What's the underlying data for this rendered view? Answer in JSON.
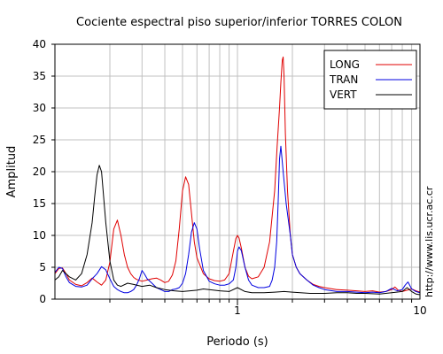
{
  "chart_data": {
    "type": "line",
    "title": "Cociente espectral piso superior/inferior  TORRES COLON",
    "xlabel": "Periodo (s)",
    "ylabel": "Amplitud",
    "xscale": "log",
    "xlim": [
      0.1,
      10
    ],
    "ylim": [
      0,
      40
    ],
    "x_ticks": [
      "1",
      "10"
    ],
    "y_ticks": [
      "0",
      "5",
      "10",
      "15",
      "20",
      "25",
      "30",
      "35",
      "40"
    ],
    "grid": true,
    "legend_position": "top-right",
    "credit": "http://www.lis.ucr.ac.cr",
    "series": [
      {
        "name": "LONG",
        "color": "#e00000",
        "x": [
          0.1,
          0.105,
          0.11,
          0.115,
          0.12,
          0.13,
          0.14,
          0.15,
          0.16,
          0.17,
          0.18,
          0.19,
          0.2,
          0.21,
          0.22,
          0.23,
          0.24,
          0.25,
          0.26,
          0.27,
          0.28,
          0.3,
          0.32,
          0.34,
          0.36,
          0.38,
          0.4,
          0.42,
          0.44,
          0.46,
          0.48,
          0.5,
          0.52,
          0.54,
          0.56,
          0.58,
          0.6,
          0.65,
          0.7,
          0.75,
          0.8,
          0.85,
          0.9,
          0.95,
          0.98,
          1.0,
          1.02,
          1.05,
          1.1,
          1.15,
          1.2,
          1.3,
          1.4,
          1.5,
          1.6,
          1.65,
          1.7,
          1.73,
          1.76,
          1.78,
          1.8,
          1.83,
          1.88,
          1.95,
          2.0,
          2.1,
          2.2,
          2.4,
          2.6,
          2.8,
          3.0,
          3.5,
          4.0,
          4.5,
          5.0,
          5.5,
          6.0,
          6.5,
          7.0,
          7.3,
          7.6,
          8.0,
          8.5,
          9.0,
          9.5,
          10.0
        ],
        "y": [
          4.0,
          4.8,
          4.9,
          4.0,
          3.0,
          2.3,
          2.1,
          2.6,
          3.3,
          2.7,
          2.2,
          3.0,
          5.8,
          11.0,
          12.4,
          10.0,
          7.0,
          5.0,
          4.0,
          3.4,
          3.1,
          2.8,
          3.0,
          3.2,
          3.3,
          3.0,
          2.6,
          2.8,
          3.8,
          6.0,
          11.0,
          17.0,
          19.2,
          18.0,
          13.5,
          9.0,
          6.5,
          4.0,
          3.2,
          2.9,
          2.8,
          3.0,
          4.0,
          7.5,
          9.5,
          10.0,
          9.6,
          8.0,
          5.0,
          3.6,
          3.2,
          3.5,
          5.0,
          9.0,
          17.0,
          24.0,
          30.0,
          34.0,
          37.5,
          38.0,
          35.0,
          26.0,
          17.0,
          10.0,
          7.0,
          5.0,
          4.0,
          3.0,
          2.3,
          2.0,
          1.8,
          1.5,
          1.4,
          1.3,
          1.2,
          1.3,
          1.1,
          1.2,
          1.5,
          1.9,
          1.4,
          1.2,
          1.4,
          1.6,
          1.3,
          1.1
        ]
      },
      {
        "name": "TRAN",
        "color": "#0000e0",
        "x": [
          0.1,
          0.105,
          0.11,
          0.115,
          0.12,
          0.13,
          0.14,
          0.15,
          0.16,
          0.17,
          0.18,
          0.19,
          0.2,
          0.21,
          0.22,
          0.23,
          0.24,
          0.25,
          0.26,
          0.27,
          0.28,
          0.29,
          0.3,
          0.31,
          0.32,
          0.34,
          0.36,
          0.38,
          0.4,
          0.42,
          0.44,
          0.46,
          0.48,
          0.5,
          0.52,
          0.54,
          0.56,
          0.58,
          0.6,
          0.62,
          0.65,
          0.7,
          0.75,
          0.8,
          0.85,
          0.9,
          0.95,
          0.98,
          1.0,
          1.02,
          1.05,
          1.1,
          1.15,
          1.2,
          1.3,
          1.4,
          1.5,
          1.55,
          1.6,
          1.64,
          1.67,
          1.7,
          1.73,
          1.78,
          1.85,
          1.95,
          2.0,
          2.1,
          2.2,
          2.4,
          2.6,
          2.8,
          3.0,
          3.5,
          4.0,
          4.5,
          5.0,
          5.5,
          6.0,
          6.5,
          7.0,
          7.5,
          8.0,
          8.3,
          8.6,
          9.0,
          9.5,
          10.0
        ],
        "y": [
          4.2,
          5.0,
          4.8,
          3.5,
          2.6,
          2.0,
          1.9,
          2.2,
          3.2,
          4.0,
          5.1,
          4.6,
          3.2,
          2.0,
          1.5,
          1.2,
          1.0,
          1.0,
          1.2,
          1.5,
          2.2,
          3.2,
          4.5,
          3.9,
          3.2,
          2.5,
          1.8,
          1.5,
          1.2,
          1.2,
          1.5,
          1.6,
          1.8,
          2.5,
          4.0,
          7.0,
          10.5,
          12.0,
          11.0,
          8.0,
          4.5,
          2.8,
          2.4,
          2.2,
          2.2,
          2.4,
          3.0,
          5.0,
          7.5,
          8.2,
          7.6,
          5.0,
          3.0,
          2.2,
          1.8,
          1.8,
          2.0,
          3.0,
          5.0,
          9.0,
          15.0,
          22.0,
          24.0,
          20.0,
          15.0,
          10.0,
          7.0,
          5.0,
          4.0,
          3.0,
          2.2,
          1.8,
          1.5,
          1.2,
          1.2,
          1.1,
          1.0,
          1.1,
          1.0,
          1.2,
          1.7,
          1.3,
          1.5,
          2.2,
          2.7,
          1.6,
          1.2,
          1.0
        ]
      },
      {
        "name": "VERT",
        "color": "#000000",
        "x": [
          0.1,
          0.105,
          0.11,
          0.115,
          0.12,
          0.13,
          0.14,
          0.15,
          0.16,
          0.165,
          0.17,
          0.175,
          0.18,
          0.185,
          0.19,
          0.2,
          0.21,
          0.22,
          0.23,
          0.25,
          0.27,
          0.3,
          0.33,
          0.36,
          0.4,
          0.45,
          0.5,
          0.55,
          0.6,
          0.65,
          0.7,
          0.8,
          0.9,
          1.0,
          1.1,
          1.2,
          1.4,
          1.6,
          1.8,
          2.0,
          2.5,
          3.0,
          3.5,
          4.0,
          4.5,
          5.0,
          6.0,
          7.0,
          8.0,
          8.5,
          9.0,
          9.5,
          10.0
        ],
        "y": [
          3.0,
          3.5,
          4.5,
          4.0,
          3.5,
          3.0,
          4.0,
          7.0,
          12.0,
          16.0,
          19.5,
          21.0,
          20.0,
          16.0,
          12.0,
          6.0,
          3.0,
          2.2,
          2.0,
          2.5,
          2.3,
          2.0,
          2.2,
          1.8,
          1.5,
          1.3,
          1.2,
          1.3,
          1.4,
          1.6,
          1.5,
          1.3,
          1.2,
          1.8,
          1.2,
          1.0,
          1.0,
          1.1,
          1.2,
          1.1,
          0.9,
          0.9,
          1.0,
          1.0,
          0.9,
          0.9,
          0.8,
          1.0,
          1.2,
          1.8,
          1.2,
          0.8,
          0.7
        ]
      }
    ]
  }
}
